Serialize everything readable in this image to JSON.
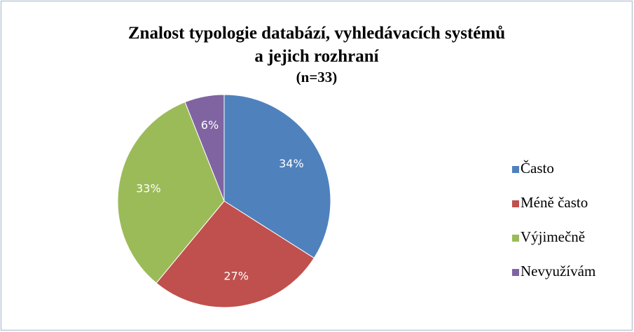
{
  "chart_data": {
    "type": "pie",
    "title": [
      "Znalost typologie databází, vyhledávacích systémů",
      "a jejich rozhraní"
    ],
    "subtitle": "(n=33)",
    "categories": [
      "Často",
      "Méně často",
      "Výjimečně",
      "Nevyužívám"
    ],
    "values": [
      34,
      27,
      33,
      6
    ],
    "value_labels": [
      "34%",
      "27%",
      "33%",
      "6%"
    ],
    "colors": [
      "#4f81bd",
      "#c0504d",
      "#9bbb59",
      "#8064a2"
    ],
    "legend": "right"
  }
}
